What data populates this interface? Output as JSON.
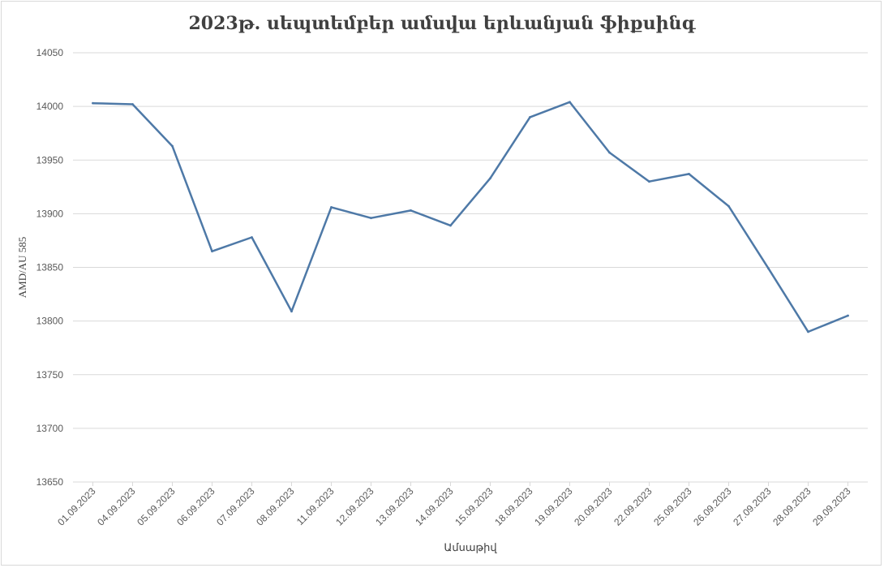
{
  "chart_data": {
    "type": "line",
    "title": "2023թ. սեպտեմբեր ամսվա երևանյան ֆիքսինգ",
    "xlabel": "Ամսաթիվ",
    "ylabel": "AMD/AU 585",
    "ylim": [
      13650,
      14050
    ],
    "yticks": [
      "13650",
      "13700",
      "13750",
      "13800",
      "13850",
      "13900",
      "13950",
      "14000",
      "14050"
    ],
    "grid": true,
    "line_color": "#4e79a7",
    "categories": [
      "01.09.2023",
      "04.09.2023",
      "05.09.2023",
      "06.09.2023",
      "07.09.2023",
      "08.09.2023",
      "11.09.2023",
      "12.09.2023",
      "13.09.2023",
      "14.09.2023",
      "15.09.2023",
      "18.09.2023",
      "19.09.2023",
      "20.09.2023",
      "22.09.2023",
      "25.09.2023",
      "26.09.2023",
      "27.09.2023",
      "28.09.2023",
      "29.09.2023"
    ],
    "values": [
      14003,
      14002,
      13963,
      13865,
      13878,
      13809,
      13906,
      13896,
      13903,
      13889,
      13933,
      13990,
      14004,
      13957,
      13930,
      13937,
      13907,
      13849,
      13790,
      13805
    ]
  }
}
